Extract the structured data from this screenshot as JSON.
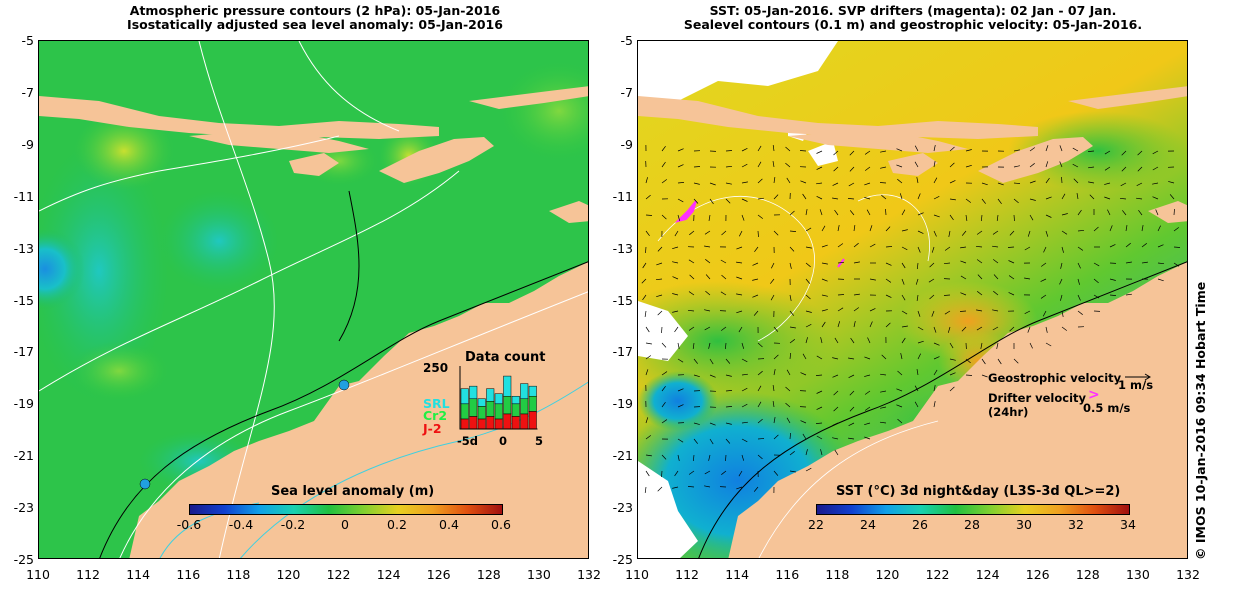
{
  "left_panel": {
    "title_line1": "Atmospheric pressure contours (2 hPa): 05-Jan-2016",
    "title_line2": "Isostatically adjusted sea level anomaly: 05-Jan-2016",
    "y_ticks": [
      "-5",
      "-7",
      "-9",
      "-11",
      "-13",
      "-15",
      "-17",
      "-19",
      "-21",
      "-23",
      "-25"
    ],
    "x_ticks": [
      "110",
      "112",
      "114",
      "116",
      "118",
      "120",
      "122",
      "124",
      "126",
      "128",
      "130",
      "132"
    ],
    "colorbar": {
      "label": "Sea level anomaly (m)",
      "ticks": [
        "-0.6",
        "-0.4",
        "-0.2",
        "0",
        "0.2",
        "0.4",
        "0.6"
      ]
    },
    "data_count": {
      "title": "Data count",
      "ymax_label": "250",
      "x_labels": [
        "-5d",
        "0",
        "5"
      ],
      "legend": [
        "SRL",
        "Cr2",
        "J-2"
      ],
      "colors": {
        "SRL": "#22e0e0",
        "Cr2": "#22cc44",
        "J-2": "#ee1111"
      },
      "bars": [
        {
          "SRL": 60,
          "Cr2": 60,
          "J-2": 40
        },
        {
          "SRL": 50,
          "Cr2": 70,
          "J-2": 50
        },
        {
          "SRL": 30,
          "Cr2": 50,
          "J-2": 40
        },
        {
          "SRL": 50,
          "Cr2": 60,
          "J-2": 50
        },
        {
          "SRL": 40,
          "Cr2": 60,
          "J-2": 40
        },
        {
          "SRL": 80,
          "Cr2": 70,
          "J-2": 60
        },
        {
          "SRL": 30,
          "Cr2": 50,
          "J-2": 50
        },
        {
          "SRL": 60,
          "Cr2": 60,
          "J-2": 60
        },
        {
          "SRL": 40,
          "Cr2": 60,
          "J-2": 70
        }
      ]
    }
  },
  "right_panel": {
    "title_line1": "SST: 05-Jan-2016. SVP drifters (magenta): 02 Jan - 07 Jan.",
    "title_line2": "Sealevel contours (0.1 m) and geostrophic velocity: 05-Jan-2016.",
    "y_ticks": [
      "-5",
      "-7",
      "-9",
      "-11",
      "-13",
      "-15",
      "-17",
      "-19",
      "-21",
      "-23",
      "-25"
    ],
    "x_ticks": [
      "110",
      "112",
      "114",
      "116",
      "118",
      "120",
      "122",
      "124",
      "126",
      "128",
      "130",
      "132"
    ],
    "colorbar": {
      "label": "SST (°C) 3d night&day (L3S-3d QL>=2)",
      "ticks": [
        "22",
        "24",
        "26",
        "28",
        "30",
        "32",
        "34"
      ]
    },
    "legend": {
      "geo_label": "Geostrophic velocity",
      "geo_scale": "1 m/s",
      "drifter_label": "Drifter velocity",
      "drifter_sub": "(24hr)",
      "drifter_scale": "0.5 m/s",
      "drifter_arrow": ">"
    }
  },
  "credit": "© IMOS 10-Jan-2016 09:34 Hobart Time"
}
